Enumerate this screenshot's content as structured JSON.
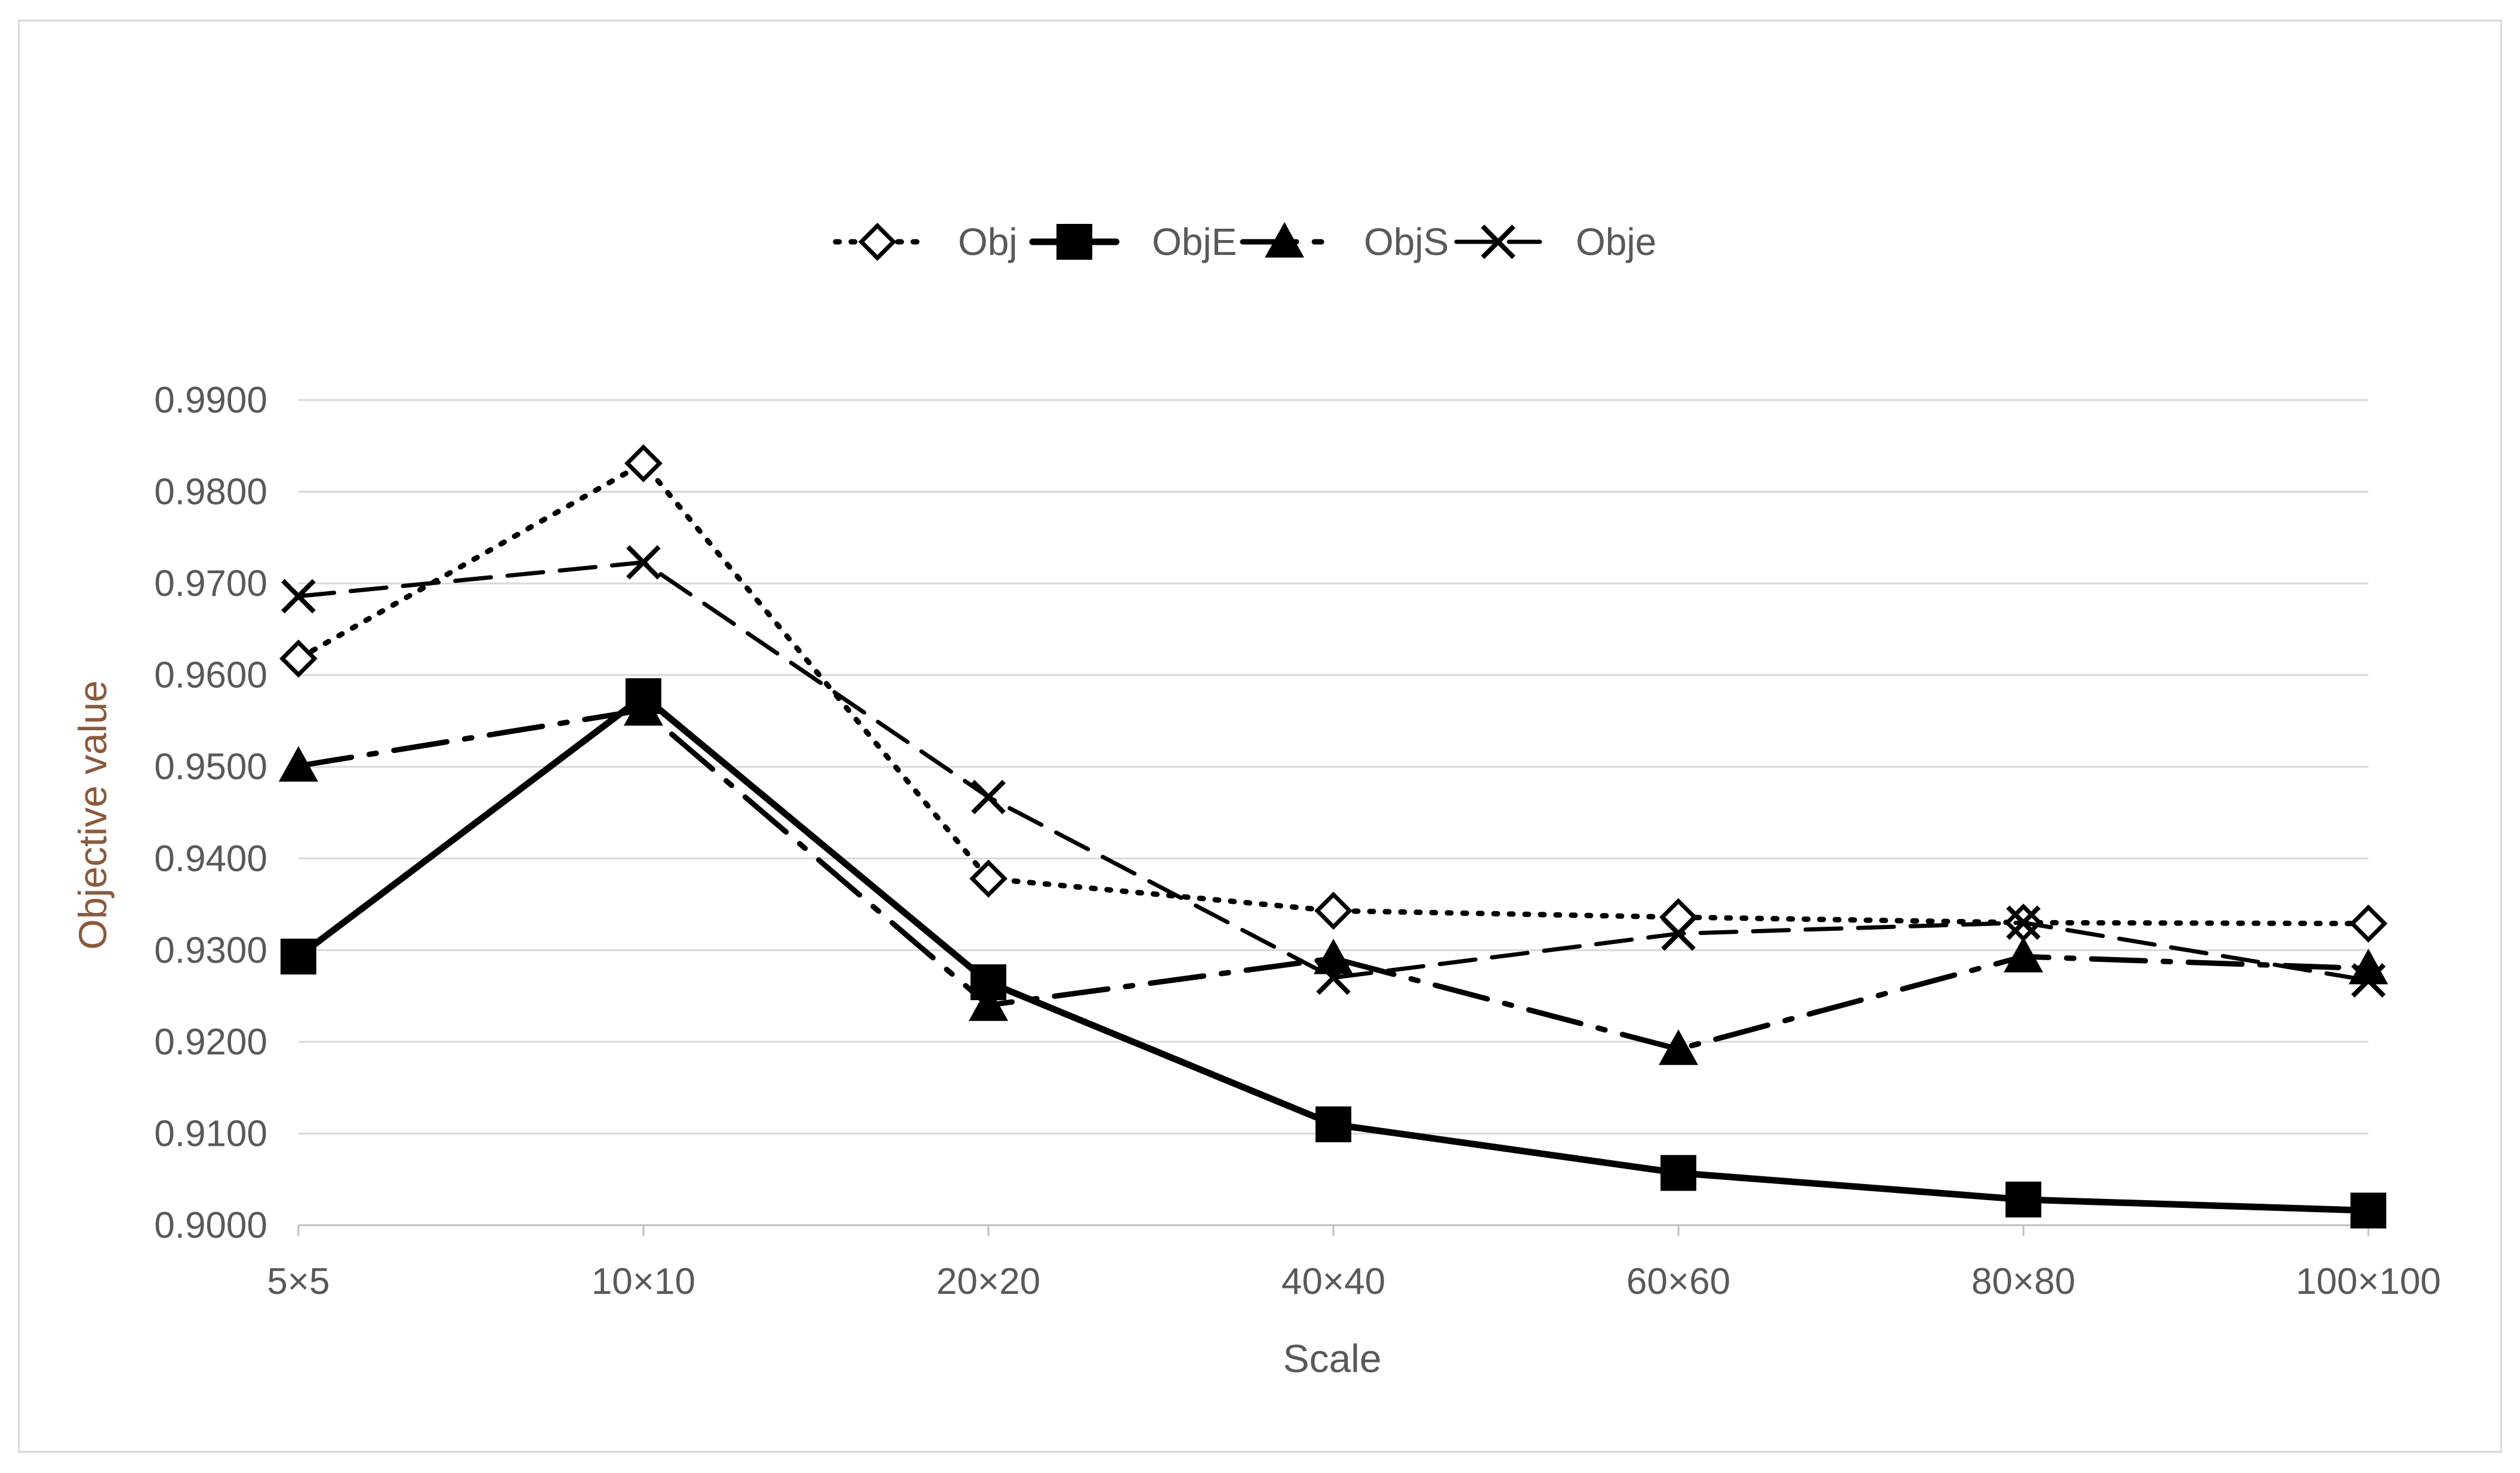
{
  "chart_data": {
    "type": "line",
    "title": "",
    "xlabel": "Scale",
    "ylabel": "Objective value",
    "categories": [
      "5×5",
      "10×10",
      "20×20",
      "40×40",
      "60×60",
      "80×80",
      "100×100"
    ],
    "ylim": [
      0.9,
      0.99
    ],
    "yticks": [
      "0.9000",
      "0.9100",
      "0.9200",
      "0.9300",
      "0.9400",
      "0.9500",
      "0.9600",
      "0.9700",
      "0.9800",
      "0.9900"
    ],
    "grid": true,
    "legend_position": "top-center",
    "series": [
      {
        "name": "Obj",
        "values": [
          0.9618,
          0.9831,
          0.9378,
          0.9343,
          0.9336,
          0.933,
          0.9329
        ],
        "marker": "diamond-open",
        "dash": "dotted",
        "color": "#000000"
      },
      {
        "name": "ObjE",
        "values": [
          0.9293,
          0.9577,
          0.9265,
          0.911,
          0.9057,
          0.9028,
          0.9016
        ],
        "marker": "square",
        "dash": "solid",
        "color": "#000000"
      },
      {
        "name": "ObjS",
        "values": [
          0.9501,
          0.9562,
          0.924,
          0.9291,
          0.9192,
          0.9293,
          0.928
        ],
        "marker": "triangle",
        "dash": "dash-dot",
        "color": "#000000"
      },
      {
        "name": "Obje",
        "values": [
          0.9686,
          0.9723,
          0.9467,
          0.927,
          0.9318,
          0.933,
          0.9267
        ],
        "marker": "x",
        "dash": "dashed",
        "color": "#000000"
      }
    ]
  }
}
